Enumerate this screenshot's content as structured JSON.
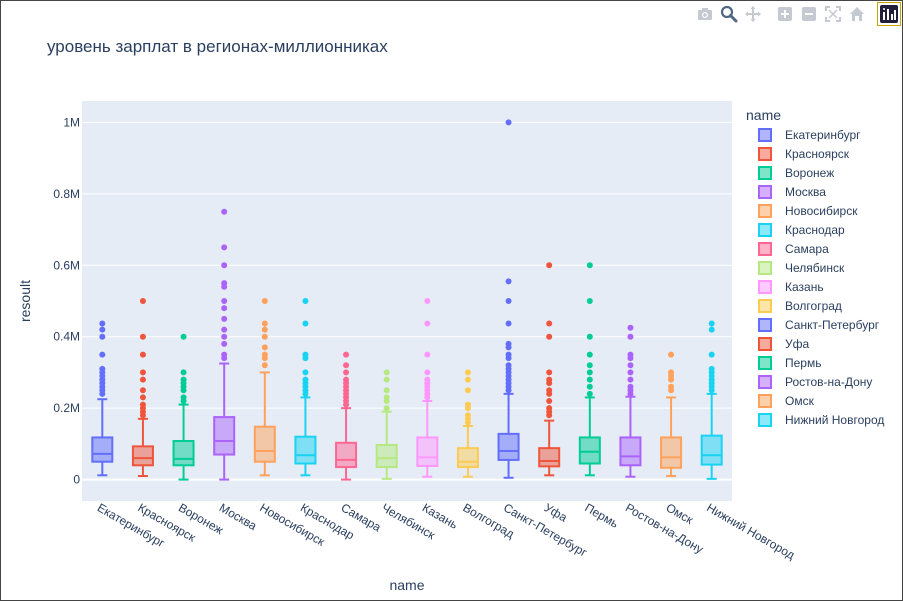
{
  "modebar": {
    "buttons": [
      {
        "icon": "camera-icon",
        "name": "download-png-button"
      },
      {
        "icon": "zoom-icon",
        "name": "zoom-button"
      },
      {
        "icon": "pan-icon",
        "name": "pan-button"
      },
      {
        "icon": "zoom-in-icon",
        "name": "zoom-in-button"
      },
      {
        "icon": "zoom-out-icon",
        "name": "zoom-out-button"
      },
      {
        "icon": "autoscale-icon",
        "name": "autoscale-button"
      },
      {
        "icon": "home-icon",
        "name": "reset-axes-button"
      },
      {
        "icon": "plotly-logo-icon",
        "name": "plotly-logo"
      }
    ]
  },
  "chart_data": {
    "type": "box",
    "title": "уровень зарплат в регионах-миллионниках",
    "xlabel": "name",
    "ylabel": "resoult",
    "legend_title": "name",
    "legend_position": "right",
    "grid": true,
    "ylim": [
      -60000,
      1060000
    ],
    "yticks": [
      0,
      200000,
      400000,
      600000,
      800000,
      1000000
    ],
    "ytick_labels": [
      "0",
      "0.2M",
      "0.4M",
      "0.6M",
      "0.8M",
      "1M"
    ],
    "categories": [
      "Екатеринбург",
      "Красноярск",
      "Воронеж",
      "Москва",
      "Новосибирск",
      "Краснодар",
      "Самара",
      "Челябинск",
      "Казань",
      "Волгоград",
      "Санкт-Петербург",
      "Уфа",
      "Пермь",
      "Ростов-на-Дону",
      "Омск",
      "Нижний Новгород"
    ],
    "series": [
      {
        "name": "Екатеринбург",
        "color": "#636efa",
        "min": 12000,
        "q1": 50000,
        "median": 72000,
        "q3": 118000,
        "upper_fence": 225000,
        "outliers": [
          240000,
          250000,
          260000,
          270000,
          280000,
          290000,
          300000,
          310000,
          350000,
          400000,
          420000,
          437000
        ]
      },
      {
        "name": "Красноярск",
        "color": "#EF553B",
        "min": 10000,
        "q1": 40000,
        "median": 60000,
        "q3": 93000,
        "upper_fence": 170000,
        "outliers": [
          180000,
          190000,
          200000,
          210000,
          230000,
          250000,
          280000,
          300000,
          350000,
          400000,
          500000
        ]
      },
      {
        "name": "Воронеж",
        "color": "#00cc96",
        "min": 0,
        "q1": 40000,
        "median": 58000,
        "q3": 108000,
        "upper_fence": 210000,
        "outliers": [
          220000,
          230000,
          250000,
          260000,
          270000,
          280000,
          300000,
          400000
        ]
      },
      {
        "name": "Москва",
        "color": "#ab63fa",
        "min": 0,
        "q1": 70000,
        "median": 108000,
        "q3": 175000,
        "upper_fence": 325000,
        "outliers": [
          340000,
          350000,
          380000,
          400000,
          420000,
          450000,
          480000,
          500000,
          540000,
          550000,
          600000,
          650000,
          750000
        ]
      },
      {
        "name": "Новосибирск",
        "color": "#FFA15A",
        "min": 12000,
        "q1": 50000,
        "median": 80000,
        "q3": 148000,
        "upper_fence": 300000,
        "outliers": [
          320000,
          340000,
          350000,
          370000,
          400000,
          420000,
          437000,
          500000
        ]
      },
      {
        "name": "Краснодар",
        "color": "#19d3f3",
        "min": 12000,
        "q1": 45000,
        "median": 68000,
        "q3": 120000,
        "upper_fence": 230000,
        "outliers": [
          240000,
          250000,
          260000,
          270000,
          280000,
          300000,
          340000,
          350000,
          437000,
          500000
        ]
      },
      {
        "name": "Самара",
        "color": "#FF6692",
        "min": 0,
        "q1": 35000,
        "median": 55000,
        "q3": 103000,
        "upper_fence": 200000,
        "outliers": [
          210000,
          220000,
          230000,
          240000,
          250000,
          260000,
          270000,
          280000,
          300000,
          320000,
          350000
        ]
      },
      {
        "name": "Челябинск",
        "color": "#B6E880",
        "min": 2000,
        "q1": 35000,
        "median": 60000,
        "q3": 97000,
        "upper_fence": 190000,
        "outliers": [
          200000,
          220000,
          230000,
          250000,
          280000,
          300000
        ]
      },
      {
        "name": "Казань",
        "color": "#FF97FF",
        "min": 8000,
        "q1": 38000,
        "median": 62000,
        "q3": 118000,
        "upper_fence": 220000,
        "outliers": [
          230000,
          240000,
          250000,
          260000,
          270000,
          280000,
          300000,
          350000,
          437000,
          500000
        ]
      },
      {
        "name": "Волгоград",
        "color": "#FECB52",
        "min": 8000,
        "q1": 35000,
        "median": 50000,
        "q3": 88000,
        "upper_fence": 150000,
        "outliers": [
          160000,
          170000,
          180000,
          200000,
          210000,
          250000,
          280000,
          300000
        ]
      },
      {
        "name": "Санкт-Петербург",
        "color": "#636efa",
        "min": 5000,
        "q1": 55000,
        "median": 80000,
        "q3": 128000,
        "upper_fence": 240000,
        "outliers": [
          250000,
          260000,
          270000,
          280000,
          290000,
          300000,
          310000,
          320000,
          340000,
          350000,
          370000,
          380000,
          437000,
          500000,
          555000,
          1000000
        ]
      },
      {
        "name": "Уфа",
        "color": "#EF553B",
        "min": 12000,
        "q1": 37000,
        "median": 52000,
        "q3": 88000,
        "upper_fence": 165000,
        "outliers": [
          180000,
          190000,
          200000,
          220000,
          240000,
          250000,
          270000,
          280000,
          300000,
          400000,
          437000,
          600000
        ]
      },
      {
        "name": "Пермь",
        "color": "#00cc96",
        "min": 12000,
        "q1": 45000,
        "median": 78000,
        "q3": 118000,
        "upper_fence": 230000,
        "outliers": [
          240000,
          260000,
          280000,
          300000,
          320000,
          350000,
          400000,
          500000,
          600000
        ]
      },
      {
        "name": "Ростов-на-Дону",
        "color": "#ab63fa",
        "min": 8000,
        "q1": 40000,
        "median": 65000,
        "q3": 118000,
        "upper_fence": 232000,
        "outliers": [
          240000,
          250000,
          260000,
          280000,
          300000,
          320000,
          340000,
          350000,
          400000,
          425000
        ]
      },
      {
        "name": "Омск",
        "color": "#FFA15A",
        "min": 10000,
        "q1": 33000,
        "median": 62000,
        "q3": 118000,
        "upper_fence": 230000,
        "outliers": [
          250000,
          260000,
          280000,
          290000,
          300000,
          350000
        ]
      },
      {
        "name": "Нижний Новгород",
        "color": "#19d3f3",
        "min": 2000,
        "q1": 42000,
        "median": 68000,
        "q3": 123000,
        "upper_fence": 240000,
        "outliers": [
          250000,
          260000,
          270000,
          280000,
          290000,
          300000,
          310000,
          350000,
          420000,
          437000
        ]
      }
    ]
  }
}
